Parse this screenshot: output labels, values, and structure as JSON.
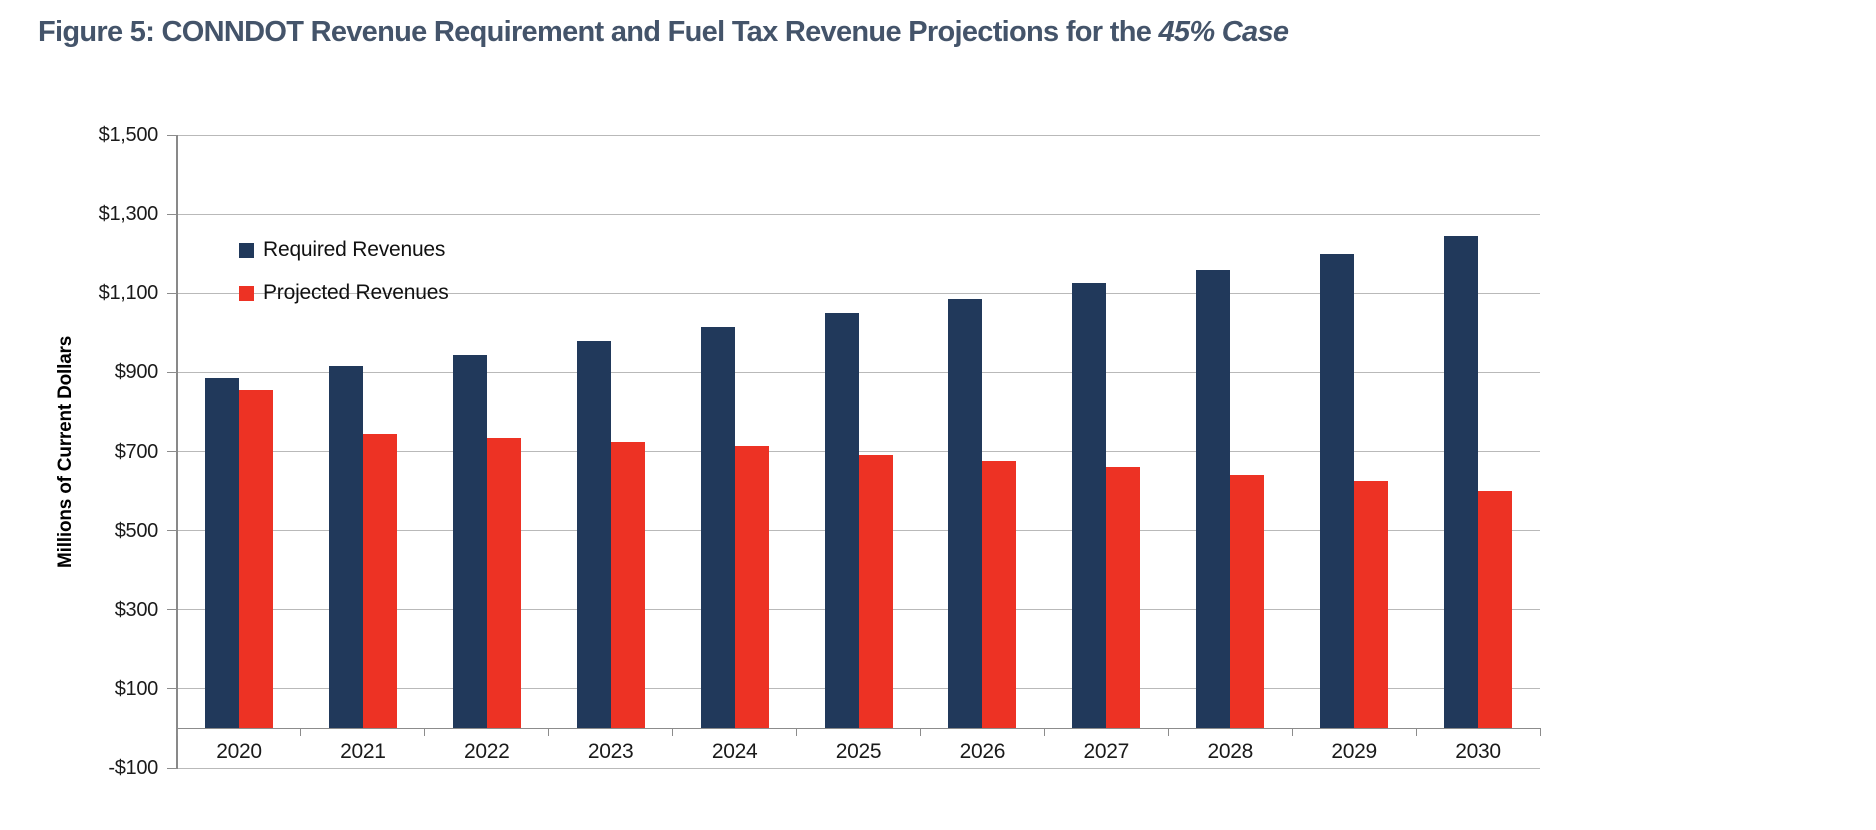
{
  "figure": {
    "title_prefix": "Figure 5: CONNDOT Revenue Requirement and Fuel Tax Revenue Projections for the ",
    "title_italic": "45% Case"
  },
  "chart_data": {
    "type": "bar",
    "title": "Figure 5: CONNDOT Revenue Requirement and Fuel Tax Revenue Projections for the 45% Case",
    "categories": [
      "2020",
      "2021",
      "2022",
      "2023",
      "2024",
      "2025",
      "2026",
      "2027",
      "2028",
      "2029",
      "2030"
    ],
    "series": [
      {
        "name": "Required Revenues",
        "color": "#21395B",
        "values": [
          885,
          915,
          945,
          980,
          1015,
          1050,
          1085,
          1125,
          1160,
          1200,
          1245
        ]
      },
      {
        "name": "Projected Revenues",
        "color": "#ED3224",
        "values": [
          855,
          745,
          735,
          725,
          715,
          690,
          675,
          660,
          640,
          625,
          600
        ]
      }
    ],
    "xlabel": "",
    "ylabel": "Millions of Current Dollars",
    "ylim": [
      -100,
      1500
    ],
    "ytick_step": 200,
    "ytick_labels": [
      "$1,500",
      "$1,300",
      "$1,100",
      "$900",
      "$700",
      "$500",
      "$300",
      "$100",
      "-$100"
    ],
    "grid": true,
    "legend_position": "inside top-left",
    "units": "millions of current dollars"
  },
  "colors": {
    "required": "#21395B",
    "projected": "#ED3224",
    "title": "#44546A",
    "gridline": "#B9B9B9",
    "axis": "#8C8C8C",
    "background": "#FFFFFF"
  }
}
